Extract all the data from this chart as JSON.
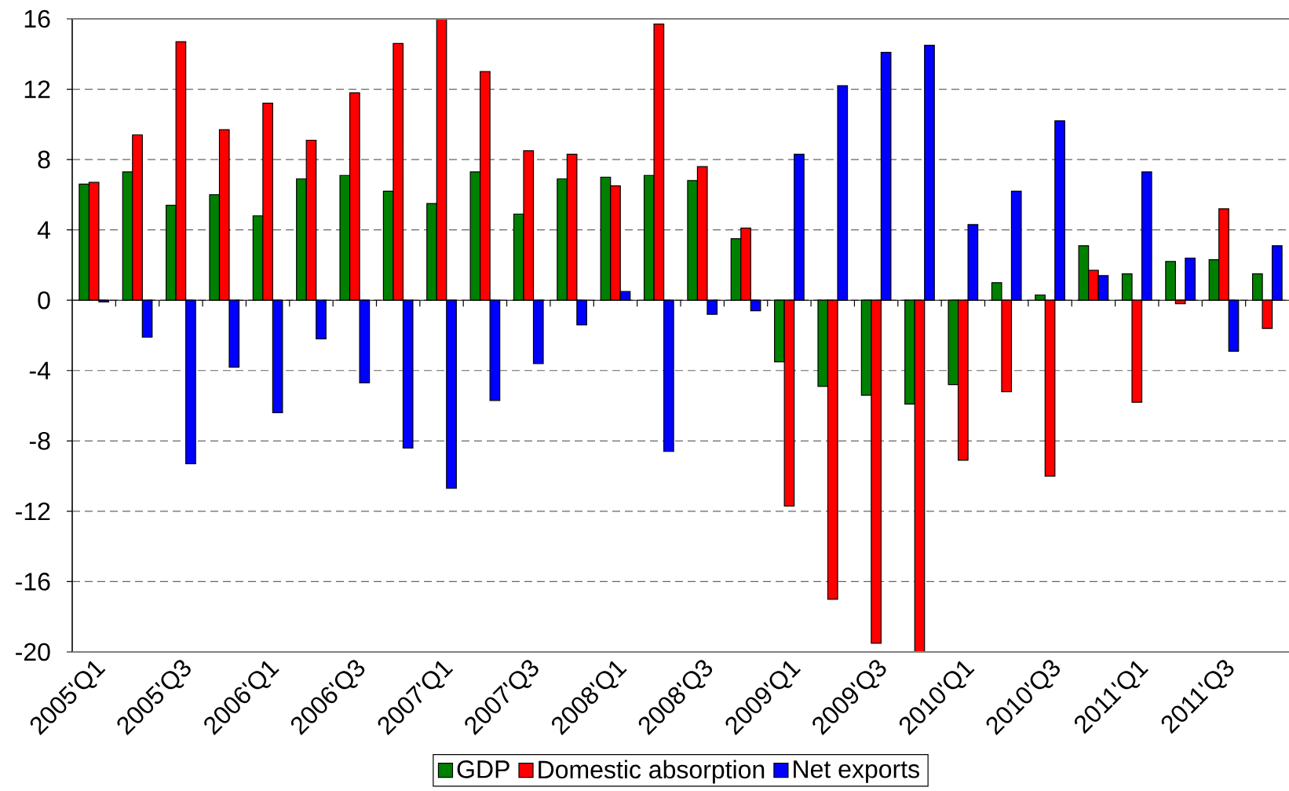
{
  "chart_data": {
    "type": "bar",
    "categories": [
      "2005'Q1",
      null,
      "2005'Q3",
      null,
      "2006'Q1",
      null,
      "2006'Q3",
      null,
      "2007'Q1",
      null,
      "2007'Q3",
      null,
      "2008'Q1",
      null,
      "2008'Q3",
      null,
      "2009'Q1",
      null,
      "2009'Q3",
      null,
      "2010'Q1",
      null,
      "2010'Q3",
      null,
      "2011'Q1",
      null,
      "2011'Q3",
      null
    ],
    "series": [
      {
        "name": "GDP",
        "color": "#008000",
        "values": [
          6.6,
          7.3,
          5.4,
          6.0,
          4.8,
          6.9,
          7.1,
          6.2,
          5.5,
          7.3,
          4.9,
          6.9,
          7.0,
          7.1,
          6.8,
          3.5,
          -3.5,
          -4.9,
          -5.4,
          -5.9,
          -4.8,
          1.0,
          0.3,
          3.1,
          1.5,
          2.2,
          2.3,
          1.5
        ]
      },
      {
        "name": "Domestic absorption",
        "color": "#ff0000",
        "values": [
          6.7,
          9.4,
          14.7,
          9.7,
          11.2,
          9.1,
          11.8,
          14.6,
          16.0,
          13.0,
          8.5,
          8.3,
          6.5,
          15.7,
          7.6,
          4.1,
          -11.7,
          -17.0,
          -19.5,
          -20.0,
          -9.1,
          -5.2,
          -10.0,
          1.7,
          -5.8,
          -0.2,
          5.2,
          -1.6
        ]
      },
      {
        "name": "Net exports",
        "color": "#0000ff",
        "values": [
          -0.1,
          -2.1,
          -9.3,
          -3.8,
          -6.4,
          -2.2,
          -4.7,
          -8.4,
          -10.7,
          -5.7,
          -3.6,
          -1.4,
          0.5,
          -8.6,
          -0.8,
          -0.6,
          8.3,
          12.2,
          14.1,
          14.5,
          4.3,
          6.2,
          10.2,
          1.4,
          7.3,
          2.4,
          -2.9,
          3.1
        ]
      }
    ],
    "ylim": [
      -20,
      16
    ],
    "yticks": [
      -20,
      -16,
      -12,
      -8,
      -4,
      0,
      4,
      8,
      12,
      16
    ],
    "grid": "y",
    "legend": "bottom"
  }
}
